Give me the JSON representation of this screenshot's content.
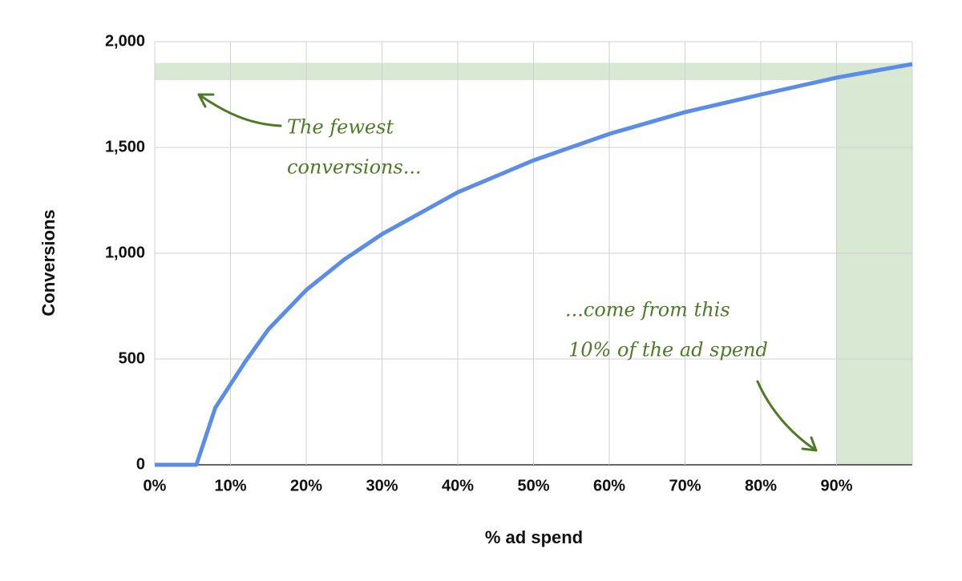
{
  "chart_data": {
    "type": "line",
    "x_label": "% ad spend",
    "y_label": "Conversions",
    "xlim": [
      0,
      100
    ],
    "ylim": [
      0,
      2000
    ],
    "xticks": [
      {
        "value": 0,
        "label": "0%"
      },
      {
        "value": 10,
        "label": "10%"
      },
      {
        "value": 20,
        "label": "20%"
      },
      {
        "value": 30,
        "label": "30%"
      },
      {
        "value": 40,
        "label": "40%"
      },
      {
        "value": 50,
        "label": "50%"
      },
      {
        "value": 60,
        "label": "60%"
      },
      {
        "value": 70,
        "label": "70%"
      },
      {
        "value": 80,
        "label": "80%"
      },
      {
        "value": 90,
        "label": "90%"
      }
    ],
    "yticks": [
      0,
      500,
      {
        "value": 1000,
        "label": "1,000"
      },
      {
        "value": 1500,
        "label": "1,500"
      },
      {
        "value": 2000,
        "label": "2,000"
      }
    ],
    "grid": true,
    "x": [
      0,
      5.5,
      8,
      10,
      12,
      15,
      20,
      25,
      30,
      40,
      50,
      60,
      70,
      80,
      90,
      100
    ],
    "series": [
      {
        "color": "#5b8de6",
        "values": [
          0,
          0,
          270,
          380,
          490,
          640,
          826,
          970,
          1090,
          1288,
          1439,
          1564,
          1667,
          1750,
          1830,
          1894
        ]
      }
    ],
    "highlights": [
      {
        "x": [
          0,
          100
        ],
        "y": [
          1818,
          1900
        ],
        "color": "#d9e8d2"
      },
      {
        "x": [
          90,
          100
        ],
        "y": [
          0,
          1818
        ],
        "color": "#d9e8d2"
      }
    ],
    "annotations": [
      {
        "lines": [
          "The fewest",
          "conversions..."
        ]
      },
      {
        "lines": [
          "...come from this",
          "10% of the ad spend"
        ]
      }
    ]
  }
}
